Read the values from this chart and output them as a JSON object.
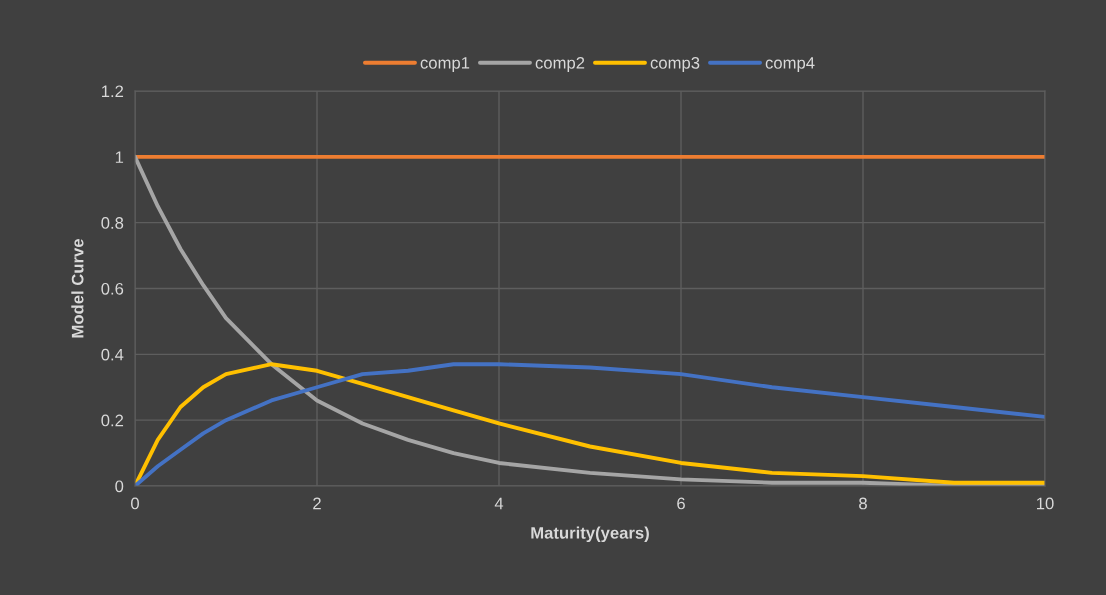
{
  "chart_data": {
    "type": "line",
    "xlabel": "Maturity(years)",
    "ylabel": "Model Curve",
    "x": [
      0,
      0.25,
      0.5,
      0.75,
      1,
      1.5,
      2,
      2.5,
      3,
      3.5,
      4,
      5,
      6,
      7,
      8,
      9,
      10
    ],
    "series": [
      {
        "name": "comp1",
        "color": "#ed7d31",
        "values": [
          1,
          1,
          1,
          1,
          1,
          1,
          1,
          1,
          1,
          1,
          1,
          1,
          1,
          1,
          1,
          1,
          1
        ]
      },
      {
        "name": "comp2",
        "color": "#a5a5a5",
        "values": [
          1,
          0.85,
          0.72,
          0.61,
          0.51,
          0.37,
          0.26,
          0.19,
          0.14,
          0.1,
          0.07,
          0.04,
          0.02,
          0.01,
          0.01,
          0.0,
          0.0
        ]
      },
      {
        "name": "comp3",
        "color": "#ffc000",
        "values": [
          0,
          0.14,
          0.24,
          0.3,
          0.34,
          0.37,
          0.35,
          0.31,
          0.27,
          0.23,
          0.19,
          0.12,
          0.07,
          0.04,
          0.03,
          0.01,
          0.01
        ]
      },
      {
        "name": "comp4",
        "color": "#4472c4",
        "values": [
          0,
          0.06,
          0.11,
          0.16,
          0.2,
          0.26,
          0.3,
          0.34,
          0.35,
          0.37,
          0.37,
          0.36,
          0.34,
          0.3,
          0.27,
          0.24,
          0.21
        ]
      }
    ],
    "xlim": [
      0,
      10
    ],
    "xticks": [
      0,
      2,
      4,
      6,
      8,
      10
    ],
    "ylim": [
      0,
      1.2
    ],
    "yticks": [
      0,
      0.2,
      0.4,
      0.6,
      0.8,
      1,
      1.2
    ],
    "grid": true,
    "legend": "top",
    "marker": "none",
    "line_style": "solid"
  }
}
